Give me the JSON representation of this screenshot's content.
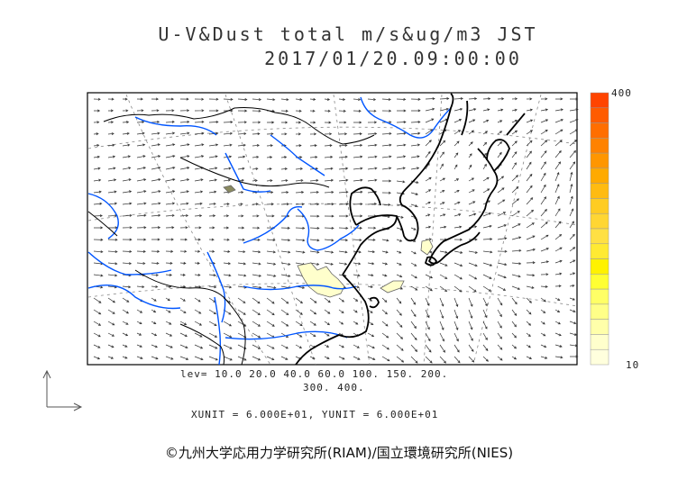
{
  "title": {
    "line1": "U-V&Dust total m/s&ug/m3 JST",
    "line2": "2017/01/20.09:00:00"
  },
  "colorbar": {
    "max_label": "400",
    "min_label": "10",
    "colors": [
      "#ff4400",
      "#ff5c00",
      "#ff6e00",
      "#ff8200",
      "#ff9600",
      "#ffaa00",
      "#ffbb11",
      "#ffcc22",
      "#ffd633",
      "#ffe044",
      "#ffea33",
      "#fff200",
      "#ffff33",
      "#ffff66",
      "#ffff88",
      "#ffffaa",
      "#ffffcc",
      "#ffffdd"
    ]
  },
  "legend": {
    "lev_line1": "lev= 10.0 20.0 40.0 60.0 100. 150. 200.",
    "lev_line2": "300. 400.",
    "units_line": "XUNIT = 6.000E+01, YUNIT = 6.000E+01"
  },
  "footer": "©九州大学応用力学研究所(RIAM)/国立環境研究所(NIES)",
  "map": {
    "coast_color": "#000000",
    "river_color": "#0055ff",
    "dust_fill": "#ffffcc",
    "grid_color": "#888888"
  }
}
